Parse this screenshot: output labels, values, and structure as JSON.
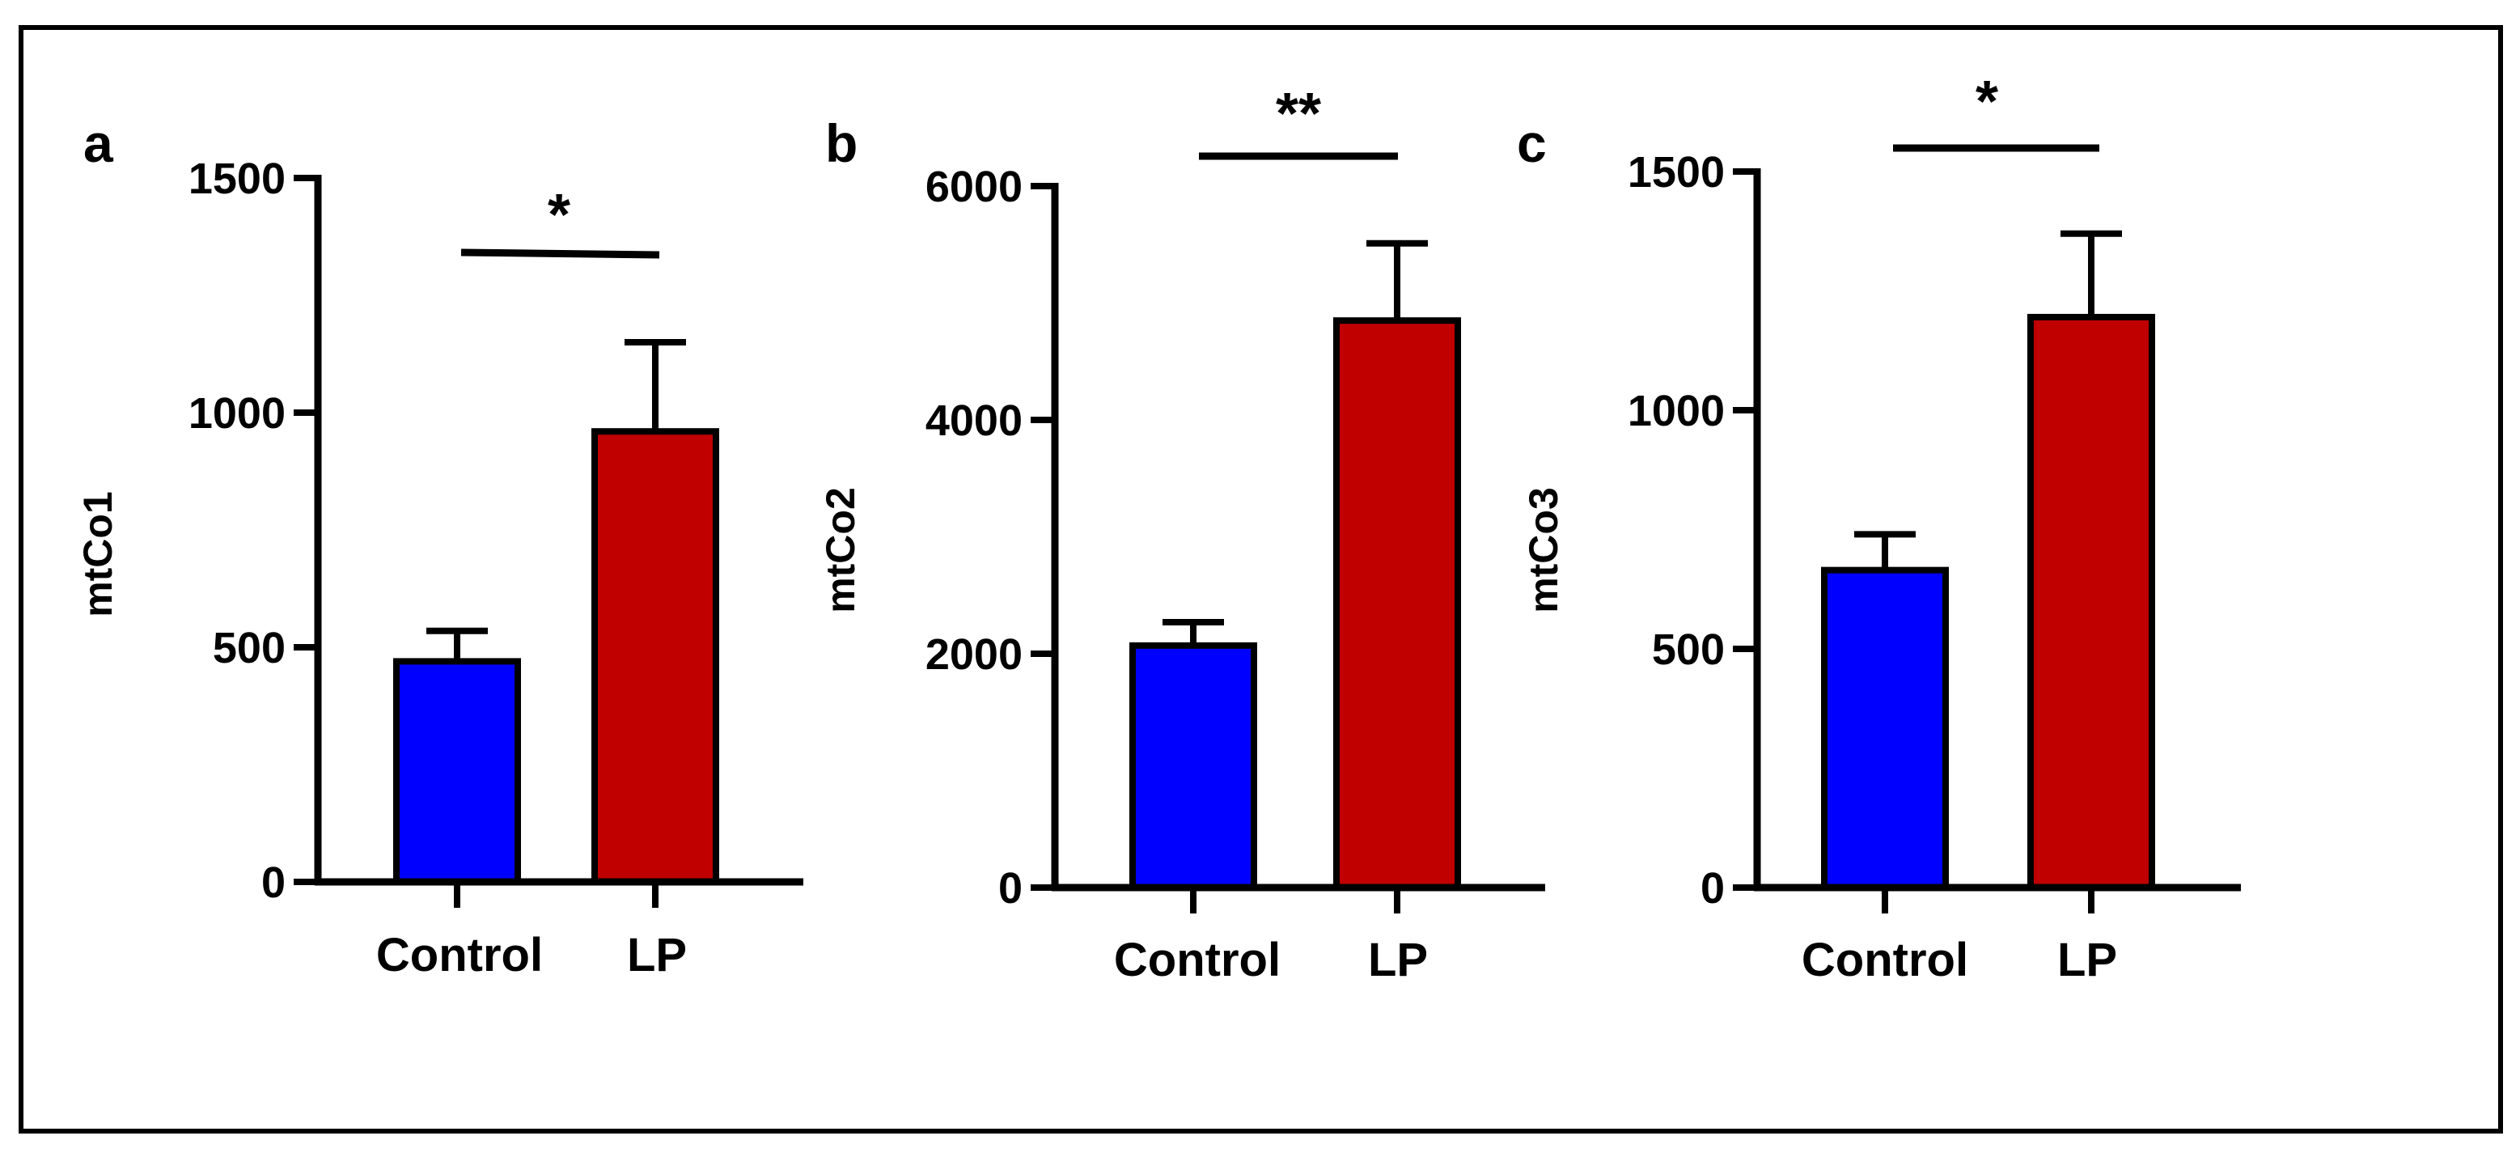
{
  "chart_data": [
    {
      "type": "bar",
      "panel_label": "a",
      "categories": [
        "Control",
        "LP"
      ],
      "values": [
        470,
        960
      ],
      "errors": [
        65,
        190
      ],
      "colors": [
        "#0000ff",
        "#c00000"
      ],
      "ylabel": "mtCo1",
      "ylim": [
        0,
        1500
      ],
      "yticks": [
        0,
        500,
        1000,
        1500
      ],
      "significance": "*",
      "grid": false
    },
    {
      "type": "bar",
      "panel_label": "b",
      "categories": [
        "Control",
        "LP"
      ],
      "values": [
        2070,
        4850
      ],
      "errors": [
        200,
        660
      ],
      "colors": [
        "#0000ff",
        "#c00000"
      ],
      "ylabel": "mtCo2",
      "ylim": [
        0,
        6000
      ],
      "yticks": [
        0,
        2000,
        4000,
        6000
      ],
      "significance": "**",
      "grid": false
    },
    {
      "type": "bar",
      "panel_label": "c",
      "categories": [
        "Control",
        "LP"
      ],
      "values": [
        665,
        1195
      ],
      "errors": [
        75,
        175
      ],
      "colors": [
        "#0000ff",
        "#c00000"
      ],
      "ylabel": "mtCo3",
      "ylim": [
        0,
        1500
      ],
      "yticks": [
        0,
        500,
        1000,
        1500
      ],
      "significance": "*",
      "grid": false
    }
  ]
}
